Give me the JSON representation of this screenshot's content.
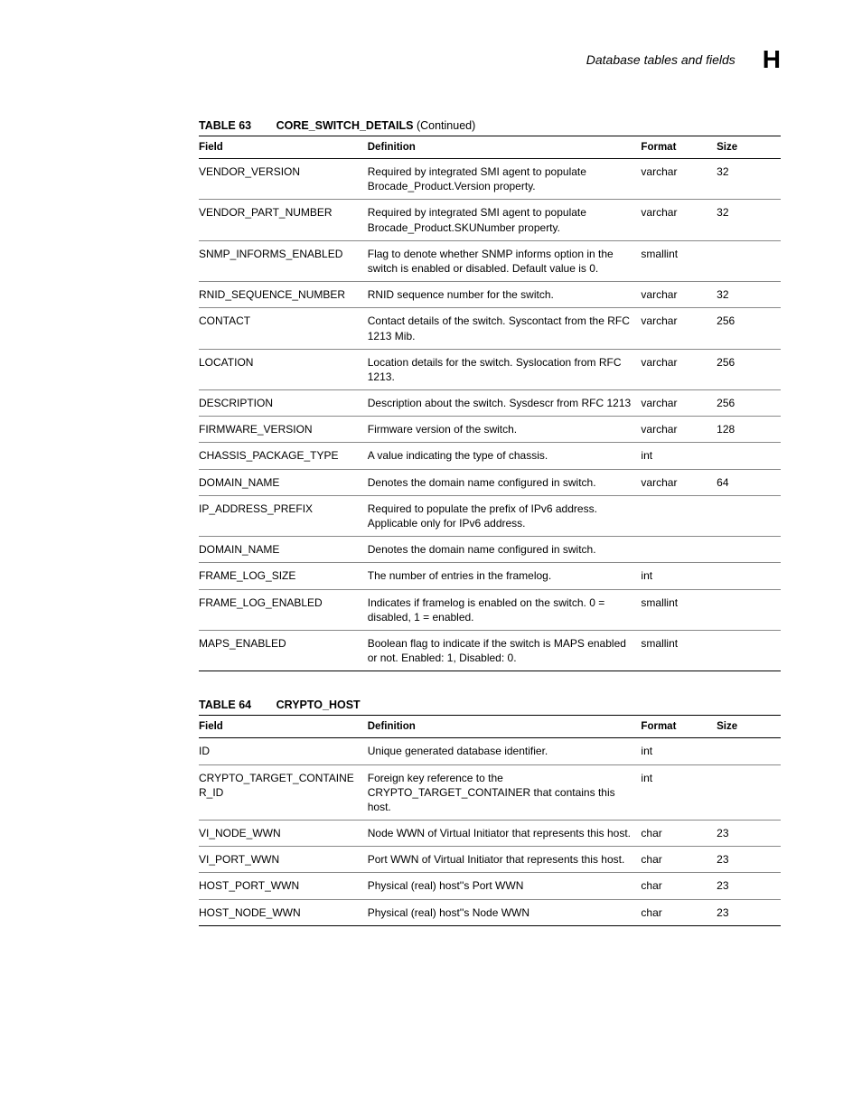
{
  "header": {
    "title": "Database tables and fields",
    "letter": "H"
  },
  "table63": {
    "label": "TABLE 63",
    "name": "CORE_SWITCH_DETAILS",
    "continued": " (Continued)",
    "columns": {
      "field": "Field",
      "definition": "Definition",
      "format": "Format",
      "size": "Size"
    },
    "rows": [
      {
        "field": "VENDOR_VERSION",
        "definition": "Required by integrated SMI agent to populate Brocade_Product.Version property.",
        "format": "varchar",
        "size": "32"
      },
      {
        "field": "VENDOR_PART_NUMBER",
        "definition": "Required by integrated SMI agent to populate Brocade_Product.SKUNumber property.",
        "format": "varchar",
        "size": "32"
      },
      {
        "field": "SNMP_INFORMS_ENABLED",
        "definition": "Flag to denote whether SNMP informs option in the switch is enabled or disabled. Default value is 0.",
        "format": "smallint",
        "size": ""
      },
      {
        "field": "RNID_SEQUENCE_NUMBER",
        "definition": "RNID sequence number for the switch.",
        "format": "varchar",
        "size": "32"
      },
      {
        "field": "CONTACT",
        "definition": "Contact details of the switch. Syscontact from the RFC 1213 Mib.",
        "format": "varchar",
        "size": "256"
      },
      {
        "field": "LOCATION",
        "definition": "Location details for the switch. Syslocation from RFC 1213.",
        "format": "varchar",
        "size": "256"
      },
      {
        "field": "DESCRIPTION",
        "definition": "Description about the switch. Sysdescr from RFC 1213",
        "format": "varchar",
        "size": "256"
      },
      {
        "field": "FIRMWARE_VERSION",
        "definition": "Firmware version of the switch.",
        "format": "varchar",
        "size": "128"
      },
      {
        "field": "CHASSIS_PACKAGE_TYPE",
        "definition": "A value indicating the type of chassis.",
        "format": "int",
        "size": ""
      },
      {
        "field": "DOMAIN_NAME",
        "definition": "Denotes the domain name configured in switch.",
        "format": "varchar",
        "size": "64"
      },
      {
        "field": "IP_ADDRESS_PREFIX",
        "definition": "Required to populate the prefix of IPv6 address. Applicable only for IPv6 address.",
        "format": "",
        "size": ""
      },
      {
        "field": "DOMAIN_NAME",
        "definition": "Denotes the domain name configured in switch.",
        "format": "",
        "size": ""
      },
      {
        "field": "FRAME_LOG_SIZE",
        "definition": "The number of entries in the framelog.",
        "format": "int",
        "size": ""
      },
      {
        "field": "FRAME_LOG_ENABLED",
        "definition": "Indicates if framelog is enabled on the switch. 0 = disabled, 1 = enabled.",
        "format": "smallint",
        "size": ""
      },
      {
        "field": "MAPS_ENABLED",
        "definition": "Boolean flag to indicate if the switch is MAPS enabled or not. Enabled: 1, Disabled: 0.",
        "format": "smallint",
        "size": ""
      }
    ]
  },
  "table64": {
    "label": "TABLE 64",
    "name": "CRYPTO_HOST",
    "continued": "",
    "columns": {
      "field": "Field",
      "definition": "Definition",
      "format": "Format",
      "size": "Size"
    },
    "rows": [
      {
        "field": "ID",
        "definition": "Unique generated database identifier.",
        "format": "int",
        "size": ""
      },
      {
        "field": "CRYPTO_TARGET_CONTAINER_ID",
        "definition": "Foreign key reference to the CRYPTO_TARGET_CONTAINER that contains this host.",
        "format": "int",
        "size": ""
      },
      {
        "field": "VI_NODE_WWN",
        "definition": "Node WWN of Virtual Initiator that represents this host.",
        "format": "char",
        "size": "23"
      },
      {
        "field": "VI_PORT_WWN",
        "definition": "Port WWN of Virtual Initiator that represents this host.",
        "format": "char",
        "size": "23"
      },
      {
        "field": "HOST_PORT_WWN",
        "definition": "Physical (real) host''s Port WWN",
        "format": "char",
        "size": "23"
      },
      {
        "field": "HOST_NODE_WWN",
        "definition": "Physical (real) host''s Node WWN",
        "format": "char",
        "size": "23"
      }
    ]
  }
}
